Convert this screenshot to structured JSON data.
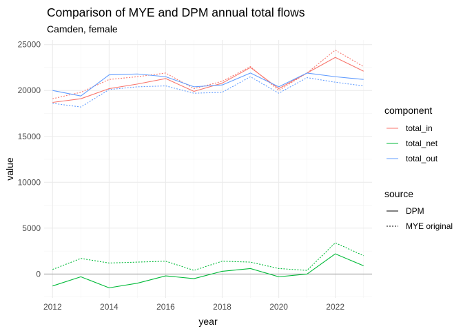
{
  "chart_data": {
    "type": "line",
    "title": "Comparison of MYE and DPM annual total flows",
    "subtitle": "Camden, female",
    "xlabel": "year",
    "ylabel": "value",
    "xlim": [
      2011.7,
      2023.3
    ],
    "ylim": [
      -2600,
      25500
    ],
    "x_ticks": [
      2012,
      2014,
      2016,
      2018,
      2020,
      2022
    ],
    "x_tick_labels": [
      "2012",
      "2014",
      "2016",
      "2018",
      "2020",
      "2022"
    ],
    "y_ticks": [
      0,
      5000,
      10000,
      15000,
      20000,
      25000
    ],
    "y_tick_labels": [
      "0",
      "5000",
      "10000",
      "15000",
      "20000",
      "25000"
    ],
    "grid": true,
    "zero_line": true,
    "x": [
      2012,
      2013,
      2014,
      2015,
      2016,
      2017,
      2018,
      2019,
      2020,
      2021,
      2022,
      2023
    ],
    "series": [
      {
        "component": "total_in",
        "source": "DPM",
        "color": "#F8766D",
        "dash": "solid",
        "values": [
          18700,
          19100,
          20200,
          20700,
          21300,
          19900,
          20800,
          22500,
          20200,
          21900,
          23600,
          22100
        ]
      },
      {
        "component": "total_in",
        "source": "MYE original",
        "color": "#F8766D",
        "dash": "dotted",
        "values": [
          19100,
          19800,
          21200,
          21500,
          21900,
          20200,
          21000,
          22600,
          20000,
          21900,
          24400,
          22600
        ]
      },
      {
        "component": "total_net",
        "source": "DPM",
        "color": "#00BA38",
        "dash": "solid",
        "values": [
          -1300,
          -300,
          -1500,
          -1000,
          -200,
          -500,
          300,
          600,
          -300,
          0,
          2200,
          900
        ]
      },
      {
        "component": "total_net",
        "source": "MYE original",
        "color": "#00BA38",
        "dash": "dotted",
        "values": [
          500,
          1700,
          1200,
          1300,
          1400,
          400,
          1400,
          1300,
          600,
          400,
          3400,
          2000
        ]
      },
      {
        "component": "total_out",
        "source": "DPM",
        "color": "#619CFF",
        "dash": "solid",
        "values": [
          20000,
          19400,
          21700,
          21800,
          21500,
          20400,
          20600,
          21900,
          20400,
          21900,
          21500,
          21200
        ]
      },
      {
        "component": "total_out",
        "source": "MYE original",
        "color": "#619CFF",
        "dash": "dotted",
        "values": [
          18600,
          18200,
          20100,
          20400,
          20500,
          19700,
          19800,
          21500,
          19700,
          21400,
          20900,
          20500
        ]
      }
    ],
    "legend": {
      "placement": "right",
      "component": {
        "title": "component",
        "items": [
          {
            "label": "total_in",
            "color": "#F8766D"
          },
          {
            "label": "total_net",
            "color": "#00BA38"
          },
          {
            "label": "total_out",
            "color": "#619CFF"
          }
        ]
      },
      "source": {
        "title": "source",
        "items": [
          {
            "label": "DPM",
            "dash": "solid"
          },
          {
            "label": "MYE original",
            "dash": "dotted"
          }
        ]
      }
    }
  }
}
